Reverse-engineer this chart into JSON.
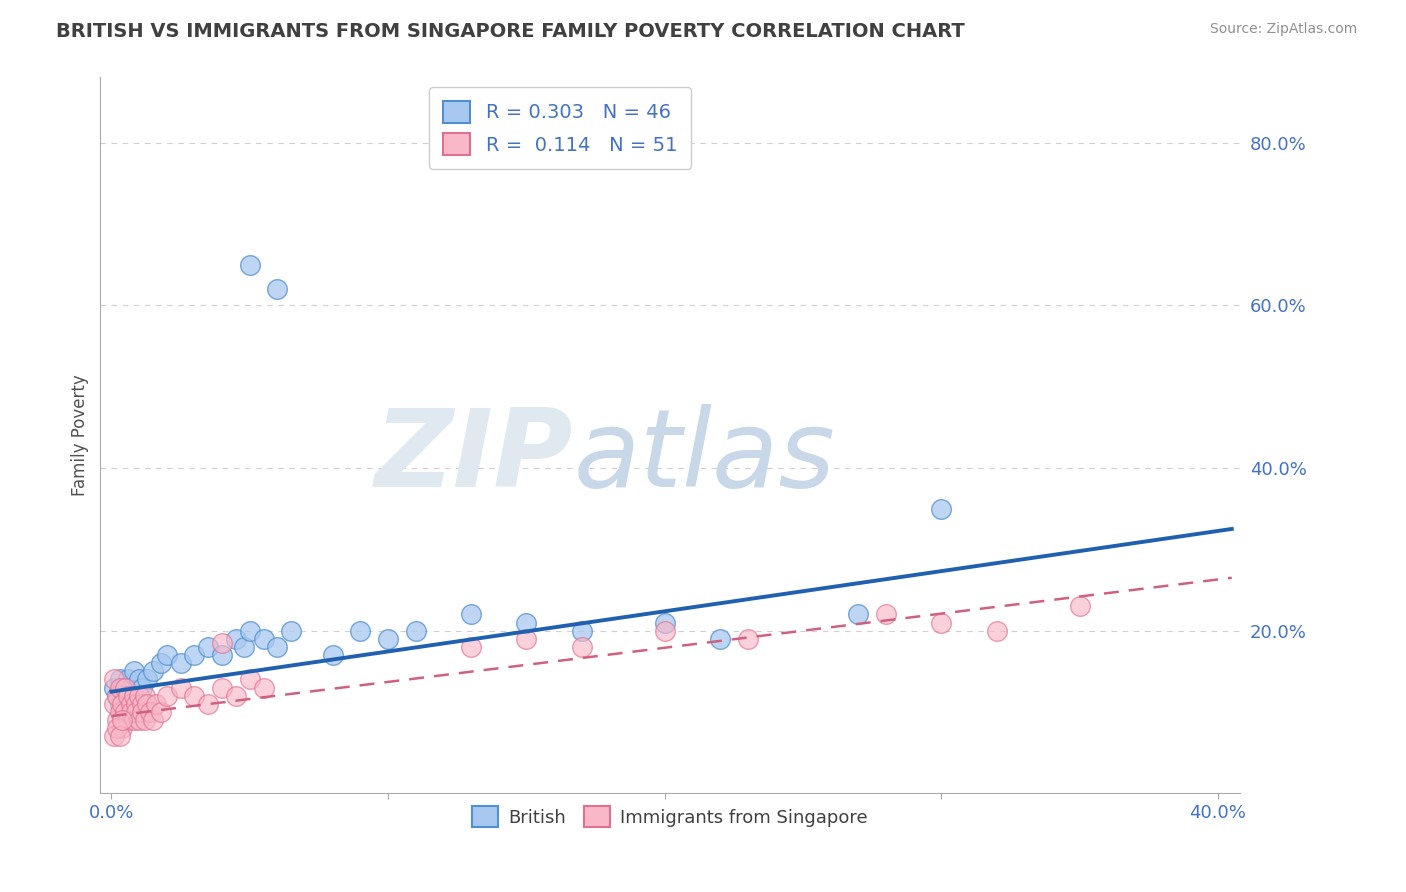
{
  "title": "BRITISH VS IMMIGRANTS FROM SINGAPORE FAMILY POVERTY CORRELATION CHART",
  "source": "Source: ZipAtlas.com",
  "ylabel_text": "Family Poverty",
  "x_min": -0.004,
  "x_max": 0.408,
  "y_min": 0.0,
  "y_max": 0.88,
  "british_R": 0.303,
  "british_N": 46,
  "singapore_R": 0.114,
  "singapore_N": 51,
  "british_color": "#a8c8f0",
  "british_edge_color": "#5090d0",
  "british_line_color": "#2060b0",
  "singapore_color": "#f8b8c8",
  "singapore_edge_color": "#e07090",
  "singapore_line_color": "#d06080",
  "grid_color": "#d0d0d0",
  "tick_label_color": "#4472c4",
  "title_color": "#404040",
  "source_color": "#909090",
  "ylabel_color": "#505050",
  "british_x": [
    0.001,
    0.002,
    0.003,
    0.003,
    0.004,
    0.004,
    0.005,
    0.005,
    0.006,
    0.006,
    0.007,
    0.007,
    0.008,
    0.008,
    0.009,
    0.01,
    0.01,
    0.011,
    0.012,
    0.013,
    0.015,
    0.018,
    0.02,
    0.025,
    0.03,
    0.035,
    0.04,
    0.045,
    0.048,
    0.05,
    0.055,
    0.06,
    0.065,
    0.08,
    0.09,
    0.1,
    0.11,
    0.13,
    0.15,
    0.17,
    0.2,
    0.22,
    0.27,
    0.3,
    0.05,
    0.06
  ],
  "british_y": [
    0.13,
    0.12,
    0.14,
    0.11,
    0.1,
    0.13,
    0.09,
    0.12,
    0.14,
    0.11,
    0.13,
    0.1,
    0.15,
    0.12,
    0.11,
    0.14,
    0.12,
    0.13,
    0.1,
    0.14,
    0.15,
    0.16,
    0.17,
    0.16,
    0.17,
    0.18,
    0.17,
    0.19,
    0.18,
    0.2,
    0.19,
    0.18,
    0.2,
    0.17,
    0.2,
    0.19,
    0.2,
    0.22,
    0.21,
    0.2,
    0.21,
    0.19,
    0.22,
    0.35,
    0.65,
    0.62
  ],
  "singapore_x": [
    0.001,
    0.001,
    0.002,
    0.002,
    0.003,
    0.003,
    0.004,
    0.004,
    0.005,
    0.005,
    0.006,
    0.006,
    0.007,
    0.007,
    0.008,
    0.008,
    0.009,
    0.009,
    0.01,
    0.01,
    0.011,
    0.011,
    0.012,
    0.012,
    0.013,
    0.014,
    0.015,
    0.016,
    0.018,
    0.02,
    0.025,
    0.03,
    0.035,
    0.04,
    0.045,
    0.05,
    0.055,
    0.04,
    0.13,
    0.15,
    0.17,
    0.2,
    0.23,
    0.28,
    0.3,
    0.32,
    0.35,
    0.001,
    0.002,
    0.003,
    0.004
  ],
  "singapore_y": [
    0.14,
    0.11,
    0.12,
    0.09,
    0.13,
    0.1,
    0.11,
    0.08,
    0.1,
    0.13,
    0.09,
    0.12,
    0.11,
    0.1,
    0.09,
    0.12,
    0.11,
    0.1,
    0.12,
    0.09,
    0.11,
    0.1,
    0.09,
    0.12,
    0.11,
    0.1,
    0.09,
    0.11,
    0.1,
    0.12,
    0.13,
    0.12,
    0.11,
    0.13,
    0.12,
    0.14,
    0.13,
    0.185,
    0.18,
    0.19,
    0.18,
    0.2,
    0.19,
    0.22,
    0.21,
    0.2,
    0.23,
    0.07,
    0.08,
    0.07,
    0.09
  ],
  "british_line_x0": 0.0,
  "british_line_y0": 0.125,
  "british_line_x1": 0.405,
  "british_line_y1": 0.325,
  "singapore_line_x0": 0.0,
  "singapore_line_y0": 0.095,
  "singapore_line_x1": 0.405,
  "singapore_line_y1": 0.265
}
